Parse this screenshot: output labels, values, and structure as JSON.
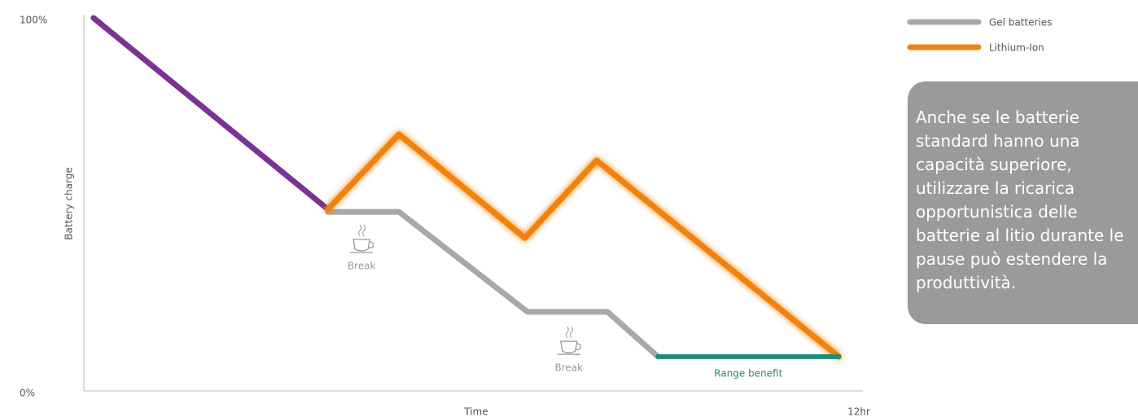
{
  "chart_data": {
    "type": "line",
    "y_label": "Battery charge",
    "x_label": "Time",
    "xlim": [
      0,
      12
    ],
    "ylim": [
      0,
      100
    ],
    "xticks": [
      {
        "value": 12,
        "label": "12hr"
      }
    ],
    "yticks": [
      {
        "value": 0,
        "label": "0%"
      },
      {
        "value": 100,
        "label": "100%"
      }
    ],
    "series": [
      {
        "color": "#7b3294",
        "x": [
          0.15,
          3.78
        ],
        "values": [
          100,
          48.7
        ],
        "in_legend": false
      },
      {
        "name": "Gel batteries",
        "color": "#a7a8aa",
        "x": [
          3.78,
          4.88,
          6.87,
          8.11,
          8.89
        ],
        "values": [
          48.0,
          48.0,
          21.2,
          21.2,
          9.2
        ],
        "in_legend": true
      },
      {
        "name": "Lithium-Ion",
        "color": "#f0820f",
        "glow": true,
        "x": [
          3.78,
          4.88,
          6.83,
          7.94,
          11.69
        ],
        "values": [
          48.7,
          68.8,
          41.0,
          61.8,
          9.2
        ],
        "in_legend": true
      },
      {
        "name": "Range benefit",
        "color": "#1e8c78",
        "x": [
          8.89,
          11.69
        ],
        "values": [
          9.2,
          9.2
        ],
        "in_legend": false,
        "label_below": true
      }
    ],
    "annotations": [
      {
        "text": "Break",
        "x": 4.3,
        "y": 39.3
      },
      {
        "text": "Break",
        "x": 7.51,
        "y": 12.0
      }
    ],
    "note": "Anche se le batterie standard hanno una capacità superiore, utilizzare la ricarica opportunistica delle batterie al litio durante le pause può estendere la produttività."
  }
}
